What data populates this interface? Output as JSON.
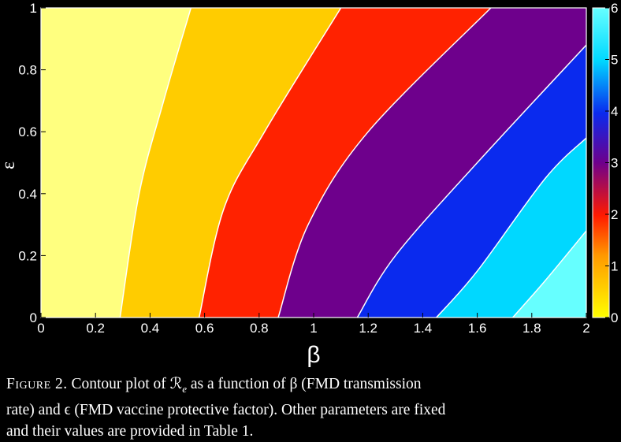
{
  "chart_data": {
    "type": "contour",
    "xlabel": "β",
    "ylabel": "ε",
    "xlim": [
      0,
      2
    ],
    "ylim": [
      0,
      1
    ],
    "x_ticks": [
      "0",
      "0.2",
      "0.4",
      "0.6",
      "0.8",
      "1",
      "1.2",
      "1.4",
      "1.6",
      "1.8",
      "2"
    ],
    "y_ticks": [
      "0",
      "0.2",
      "0.4",
      "0.6",
      "0.8",
      "1"
    ],
    "colorbar": {
      "range": [
        0,
        6
      ],
      "ticks": [
        "0",
        "1",
        "2",
        "3",
        "4",
        "5",
        "6"
      ]
    },
    "contour_levels": [
      {
        "value": 1,
        "points": [
          [
            0.29,
            0
          ],
          [
            0.36,
            0.4
          ],
          [
            0.45,
            0.7
          ],
          [
            0.55,
            1
          ]
        ]
      },
      {
        "value": 2,
        "points": [
          [
            0.58,
            0
          ],
          [
            0.67,
            0.35
          ],
          [
            0.82,
            0.6
          ],
          [
            1.1,
            1
          ]
        ]
      },
      {
        "value": 3,
        "points": [
          [
            0.87,
            0
          ],
          [
            0.98,
            0.3
          ],
          [
            1.2,
            0.6
          ],
          [
            1.65,
            1
          ]
        ]
      },
      {
        "value": 4,
        "points": [
          [
            1.16,
            0
          ],
          [
            1.3,
            0.2
          ],
          [
            1.6,
            0.5
          ],
          [
            2.0,
            0.88
          ]
        ]
      },
      {
        "value": 5,
        "points": [
          [
            1.45,
            0
          ],
          [
            1.6,
            0.15
          ],
          [
            1.85,
            0.45
          ],
          [
            2.0,
            0.58
          ]
        ]
      },
      {
        "value": 6,
        "points": [
          [
            1.73,
            0
          ],
          [
            1.85,
            0.12
          ],
          [
            2.0,
            0.28
          ]
        ]
      }
    ],
    "regions": [
      {
        "range": "0-1",
        "color": "#ffff7f"
      },
      {
        "range": "1-2",
        "color": "#ffcc00"
      },
      {
        "range": "2-3",
        "color": "#ff2200"
      },
      {
        "range": "3-4",
        "color": "#6e008c"
      },
      {
        "range": "4-5",
        "color": "#0a2aee"
      },
      {
        "range": "5-6",
        "color": "#00d8ff"
      },
      {
        "range": ">6",
        "color": "#66ffff"
      }
    ]
  },
  "caption": {
    "label": "Figure 2.",
    "line1": " Contour plot of ℛ",
    "line1_sub": "e",
    "line1_rest": " as a function of β (FMD transmission",
    "line2": "rate) and ϵ (FMD vaccine protective factor). Other parameters are fixed",
    "line3": "and their values are provided in Table 1."
  }
}
